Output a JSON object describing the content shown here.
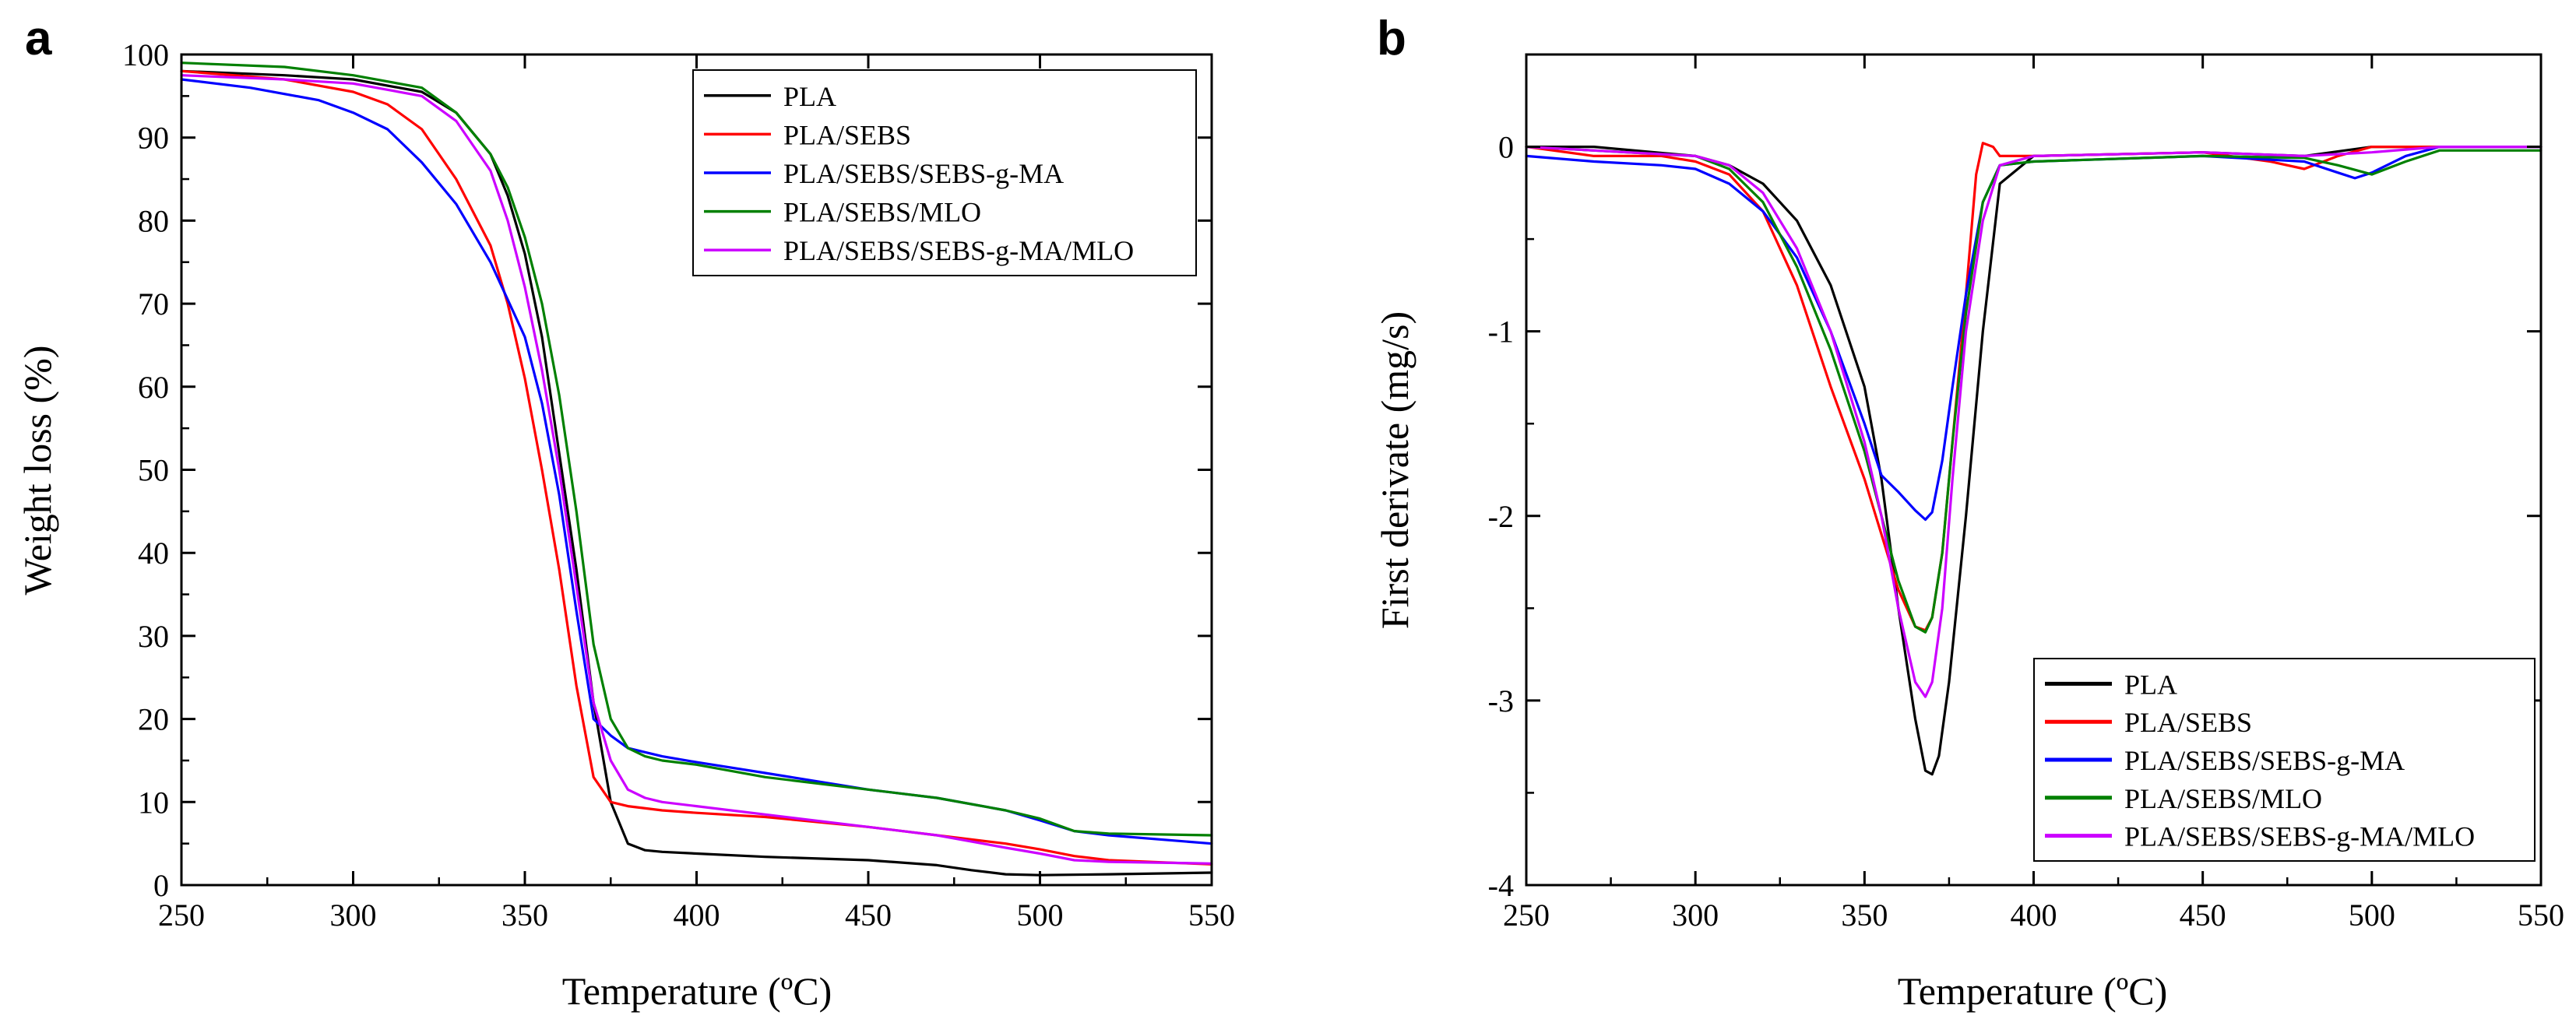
{
  "figure": {
    "panels": [
      {
        "label": "a",
        "chart_data": {
          "type": "line",
          "xlabel": "Temperature (ºC)",
          "ylabel": "Weight loss (%)",
          "xlim": [
            250,
            550
          ],
          "ylim": [
            0,
            100
          ],
          "xticks": [
            250,
            300,
            350,
            400,
            450,
            500,
            550
          ],
          "yticks": [
            0,
            10,
            20,
            30,
            40,
            50,
            60,
            70,
            80,
            90,
            100
          ],
          "legend_position": "top-right",
          "series": [
            {
              "name": "PLA",
              "color": "#000000",
              "x": [
                250,
                280,
                300,
                320,
                330,
                340,
                345,
                350,
                355,
                360,
                365,
                370,
                375,
                380,
                385,
                390,
                400,
                420,
                450,
                470,
                480,
                490,
                500,
                520,
                550
              ],
              "y": [
                98,
                97.5,
                97,
                95.5,
                93,
                88,
                83,
                76,
                66,
                52,
                38,
                22,
                10,
                5,
                4.2,
                4,
                3.8,
                3.4,
                3,
                2.4,
                1.8,
                1.3,
                1.2,
                1.3,
                1.5
              ]
            },
            {
              "name": "PLA/SEBS",
              "color": "#ff0000",
              "x": [
                250,
                280,
                300,
                310,
                320,
                330,
                340,
                345,
                350,
                355,
                360,
                365,
                370,
                375,
                380,
                390,
                400,
                420,
                450,
                470,
                480,
                490,
                500,
                510,
                520,
                550
              ],
              "y": [
                98,
                97,
                95.5,
                94,
                91,
                85,
                77,
                70,
                61,
                50,
                38,
                24,
                13,
                10,
                9.5,
                9,
                8.7,
                8.2,
                7,
                6,
                5.5,
                5,
                4.3,
                3.5,
                3,
                2.5
              ]
            },
            {
              "name": "PLA/SEBS/SEBS-g-MA",
              "color": "#0000ff",
              "x": [
                250,
                270,
                290,
                300,
                310,
                320,
                330,
                340,
                350,
                355,
                360,
                365,
                370,
                375,
                380,
                385,
                390,
                400,
                420,
                450,
                470,
                490,
                500,
                510,
                520,
                550
              ],
              "y": [
                97,
                96,
                94.5,
                93,
                91,
                87,
                82,
                75,
                66,
                58,
                47,
                33,
                20,
                18,
                16.5,
                16,
                15.5,
                14.8,
                13.5,
                11.5,
                10.5,
                9,
                7.8,
                6.5,
                6,
                5
              ]
            },
            {
              "name": "PLA/SEBS/MLO",
              "color": "#008000",
              "x": [
                250,
                280,
                300,
                320,
                330,
                340,
                345,
                350,
                355,
                360,
                365,
                370,
                375,
                380,
                385,
                390,
                400,
                420,
                450,
                470,
                490,
                500,
                510,
                520,
                550
              ],
              "y": [
                99,
                98.5,
                97.5,
                96,
                93,
                88,
                84,
                78,
                70,
                59,
                45,
                29,
                20,
                16.5,
                15.5,
                15,
                14.5,
                13,
                11.5,
                10.5,
                9,
                8,
                6.5,
                6.2,
                6
              ]
            },
            {
              "name": "PLA/SEBS/SEBS-g-MA/MLO",
              "color": "#cc00ff",
              "x": [
                250,
                280,
                300,
                320,
                330,
                340,
                345,
                350,
                355,
                360,
                365,
                370,
                375,
                380,
                385,
                390,
                400,
                420,
                450,
                470,
                490,
                500,
                510,
                520,
                550
              ],
              "y": [
                97.5,
                97,
                96.5,
                95,
                92,
                86,
                80,
                72,
                62,
                50,
                36,
                22,
                15,
                11.5,
                10.5,
                10,
                9.5,
                8.5,
                7,
                6,
                4.5,
                3.8,
                3,
                2.8,
                2.6
              ]
            }
          ]
        }
      },
      {
        "label": "b",
        "chart_data": {
          "type": "line",
          "xlabel": "Temperature (ºC)",
          "ylabel": "First derivate (mg/s)",
          "xlim": [
            250,
            550
          ],
          "ylim": [
            -4,
            0.5
          ],
          "xticks": [
            250,
            300,
            350,
            400,
            450,
            500,
            550
          ],
          "yticks": [
            -4,
            -3,
            -2,
            -1,
            0
          ],
          "legend_position": "bottom-right",
          "series": [
            {
              "name": "PLA",
              "color": "#000000",
              "x": [
                250,
                270,
                300,
                310,
                320,
                330,
                340,
                350,
                355,
                360,
                365,
                368,
                370,
                372,
                375,
                380,
                385,
                390,
                400,
                450,
                480,
                500,
                520,
                550
              ],
              "y": [
                0,
                0,
                -0.05,
                -0.1,
                -0.2,
                -0.4,
                -0.75,
                -1.3,
                -1.8,
                -2.5,
                -3.1,
                -3.38,
                -3.4,
                -3.3,
                -2.9,
                -2,
                -1,
                -0.2,
                -0.05,
                -0.03,
                -0.05,
                0,
                0,
                0
              ]
            },
            {
              "name": "PLA/SEBS",
              "color": "#ff0000",
              "x": [
                250,
                270,
                290,
                300,
                310,
                320,
                330,
                340,
                350,
                355,
                360,
                365,
                368,
                370,
                373,
                376,
                380,
                383,
                385,
                388,
                390,
                400,
                450,
                470,
                480,
                490,
                500,
                520,
                550
              ],
              "y": [
                0,
                -0.05,
                -0.05,
                -0.08,
                -0.15,
                -0.35,
                -0.75,
                -1.3,
                -1.8,
                -2.1,
                -2.4,
                -2.6,
                -2.62,
                -2.55,
                -2.2,
                -1.6,
                -0.8,
                -0.15,
                0.02,
                0,
                -0.05,
                -0.05,
                -0.03,
                -0.08,
                -0.12,
                -0.05,
                0,
                0,
                0
              ]
            },
            {
              "name": "PLA/SEBS/SEBS-g-MA",
              "color": "#0000ff",
              "x": [
                250,
                270,
                290,
                300,
                310,
                320,
                330,
                340,
                350,
                355,
                360,
                365,
                368,
                370,
                373,
                376,
                380,
                385,
                390,
                400,
                450,
                480,
                490,
                495,
                500,
                510,
                520,
                550
              ],
              "y": [
                -0.05,
                -0.08,
                -0.1,
                -0.12,
                -0.2,
                -0.35,
                -0.6,
                -1.0,
                -1.5,
                -1.78,
                -1.87,
                -1.97,
                -2.02,
                -1.98,
                -1.7,
                -1.3,
                -0.8,
                -0.3,
                -0.1,
                -0.08,
                -0.05,
                -0.08,
                -0.14,
                -0.17,
                -0.14,
                -0.05,
                0,
                0
              ]
            },
            {
              "name": "PLA/SEBS/MLO",
              "color": "#008000",
              "x": [
                250,
                270,
                300,
                310,
                320,
                330,
                340,
                350,
                355,
                360,
                365,
                368,
                370,
                373,
                376,
                380,
                385,
                390,
                400,
                450,
                480,
                490,
                500,
                510,
                520,
                550
              ],
              "y": [
                0,
                -0.02,
                -0.05,
                -0.12,
                -0.3,
                -0.65,
                -1.1,
                -1.65,
                -2.0,
                -2.35,
                -2.6,
                -2.63,
                -2.55,
                -2.2,
                -1.6,
                -0.9,
                -0.3,
                -0.1,
                -0.08,
                -0.05,
                -0.06,
                -0.1,
                -0.15,
                -0.08,
                -0.02,
                -0.02
              ]
            },
            {
              "name": "PLA/SEBS/SEBS-g-MA/MLO",
              "color": "#cc00ff",
              "x": [
                250,
                270,
                300,
                310,
                320,
                330,
                340,
                350,
                355,
                360,
                365,
                368,
                370,
                373,
                376,
                380,
                385,
                390,
                400,
                450,
                480,
                500,
                520,
                550
              ],
              "y": [
                0,
                -0.02,
                -0.05,
                -0.1,
                -0.25,
                -0.55,
                -1.0,
                -1.6,
                -2.0,
                -2.5,
                -2.9,
                -2.98,
                -2.9,
                -2.5,
                -1.8,
                -1.0,
                -0.4,
                -0.1,
                -0.05,
                -0.03,
                -0.05,
                -0.03,
                0,
                0
              ]
            }
          ]
        }
      }
    ]
  }
}
